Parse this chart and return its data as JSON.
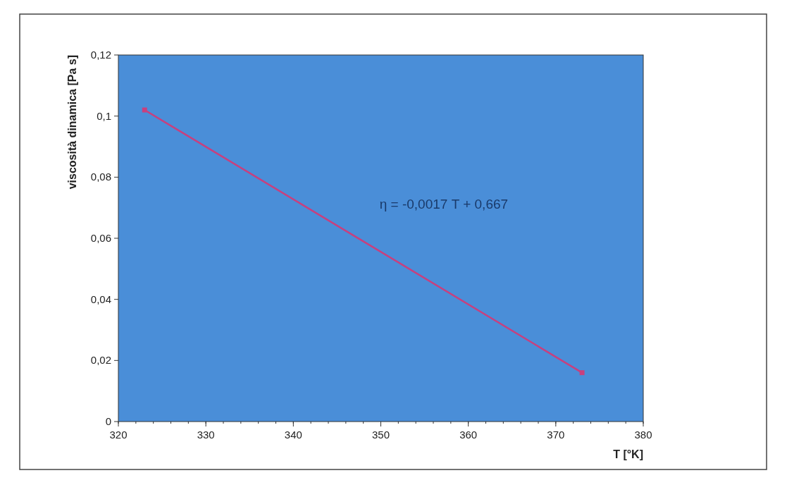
{
  "chart_data": {
    "type": "line",
    "xlabel": "T [°K]",
    "ylabel": "viscosità dinamica [Pa s]",
    "x": [
      323,
      373
    ],
    "series": [
      {
        "color": "#c8407e",
        "values": [
          0.102,
          0.016
        ]
      }
    ],
    "xlim": [
      320,
      380
    ],
    "xticks": [
      320,
      330,
      340,
      350,
      360,
      370,
      380
    ],
    "ylim": [
      0,
      0.12
    ],
    "yticks": [
      0,
      {
        "value": 0.02,
        "label": "0,02"
      },
      {
        "value": 0.04,
        "label": "0,04"
      },
      {
        "value": 0.06,
        "label": "0,06"
      },
      {
        "value": 0.08,
        "label": "0,08"
      },
      {
        "value": 0.1,
        "label": "0,1"
      },
      {
        "value": 0.12,
        "label": "0,12"
      }
    ],
    "annotations": [
      "η = -0,0017 T + 0,667"
    ],
    "marker": "square",
    "line_style": "solid",
    "grid": false
  }
}
